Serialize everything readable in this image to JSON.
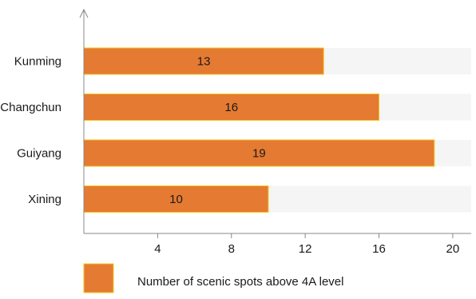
{
  "chart_data": {
    "type": "bar",
    "orientation": "horizontal",
    "categories": [
      "Kunming",
      "Changchun",
      "Guiyang",
      "Xining"
    ],
    "series": [
      {
        "name": "Number  of scenic spots above 4A level",
        "values": [
          13,
          16,
          19,
          10
        ],
        "color": "#E57A32"
      }
    ],
    "data_labels": [
      "13",
      "16",
      "19",
      "10"
    ],
    "xlim": [
      0,
      21
    ],
    "x_ticks": [
      4,
      8,
      12,
      16,
      20
    ],
    "track_color": "#F5F5F5",
    "bar_border_color": "#F5C518",
    "axis_color": "#888888",
    "legend_position": "bottom-left",
    "grid": false
  }
}
